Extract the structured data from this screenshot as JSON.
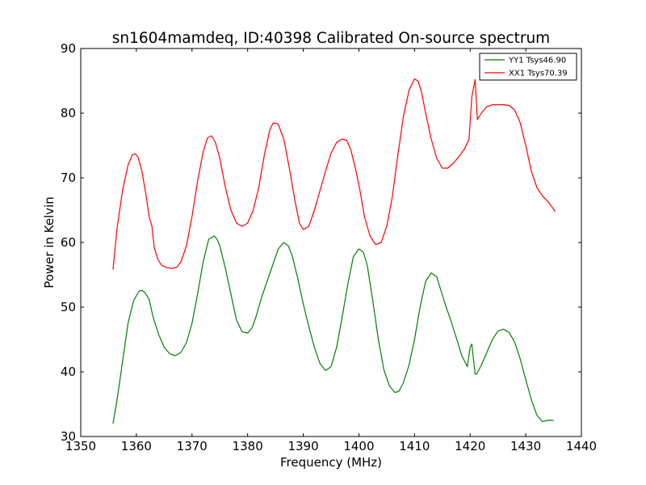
{
  "chart_data": {
    "type": "line",
    "title": "sn1604mamdeq, ID:40398 Calibrated On-source spectrum",
    "xlabel": "Frequency (MHz)",
    "ylabel": "Power in Kelvin",
    "xlim": [
      1350,
      1440
    ],
    "ylim": [
      30,
      90
    ],
    "xticks": [
      1350,
      1360,
      1370,
      1380,
      1390,
      1400,
      1410,
      1420,
      1430,
      1440
    ],
    "yticks": [
      30,
      40,
      50,
      60,
      70,
      80,
      90
    ],
    "grid": false,
    "legend_position": "top-right",
    "series": [
      {
        "name": "YY1 Tsys46.90",
        "color": "#008000",
        "x": [
          1355.8,
          1356.5,
          1357.5,
          1358.5,
          1359.5,
          1360.5,
          1361.0,
          1361.5,
          1362.3,
          1363.0,
          1364.0,
          1365.0,
          1366.0,
          1367.0,
          1368.0,
          1369.0,
          1370.0,
          1371.0,
          1372.0,
          1373.0,
          1374.0,
          1374.5,
          1375.0,
          1376.0,
          1377.0,
          1378.0,
          1379.0,
          1380.0,
          1380.8,
          1381.5,
          1382.5,
          1383.5,
          1384.5,
          1385.5,
          1386.5,
          1387.3,
          1388.0,
          1389.0,
          1390.0,
          1391.0,
          1392.0,
          1393.0,
          1394.0,
          1395.0,
          1396.0,
          1397.0,
          1398.0,
          1399.0,
          1400.0,
          1400.8,
          1401.5,
          1402.5,
          1403.5,
          1404.5,
          1405.5,
          1406.5,
          1407.2,
          1408.0,
          1409.0,
          1410.0,
          1411.0,
          1412.0,
          1413.0,
          1414.0,
          1414.6,
          1415.5,
          1416.5,
          1417.5,
          1418.5,
          1419.5,
          1420.0,
          1420.3,
          1420.9,
          1421.2,
          1422.0,
          1423.0,
          1424.0,
          1425.0,
          1426.0,
          1427.0,
          1428.0,
          1429.0,
          1430.0,
          1431.0,
          1432.0,
          1433.0,
          1434.0,
          1435.0
        ],
        "values": [
          32.0,
          35.5,
          41.5,
          47.5,
          51.0,
          52.5,
          52.6,
          52.3,
          51.2,
          48.5,
          45.8,
          43.8,
          42.8,
          42.5,
          43.0,
          44.5,
          47.5,
          52.0,
          57.0,
          60.5,
          61.0,
          60.5,
          59.5,
          56.0,
          52.0,
          48.0,
          46.2,
          46.0,
          46.8,
          48.5,
          51.5,
          54.0,
          56.5,
          59.0,
          60.0,
          59.5,
          58.0,
          54.5,
          50.5,
          47.0,
          43.8,
          41.3,
          40.2,
          40.8,
          43.8,
          48.5,
          53.5,
          57.8,
          59.0,
          58.5,
          56.5,
          51.0,
          45.0,
          40.3,
          37.8,
          36.8,
          37.0,
          38.3,
          41.0,
          45.0,
          50.0,
          54.0,
          55.3,
          54.7,
          53.0,
          50.5,
          48.0,
          45.3,
          42.5,
          40.8,
          43.8,
          44.3,
          39.6,
          39.7,
          41.0,
          43.0,
          45.0,
          46.3,
          46.6,
          46.1,
          44.6,
          42.0,
          38.8,
          35.7,
          33.3,
          32.3,
          32.5,
          32.5
        ]
      },
      {
        "name": "XX1 Tsys70.39",
        "color": "#ff0000",
        "x": [
          1355.8,
          1356.5,
          1357.5,
          1358.5,
          1359.3,
          1359.8,
          1360.3,
          1361.0,
          1361.7,
          1362.3,
          1362.8,
          1363.2,
          1363.8,
          1364.5,
          1365.5,
          1366.5,
          1367.3,
          1368.0,
          1369.0,
          1370.0,
          1371.0,
          1372.0,
          1372.8,
          1373.5,
          1374.2,
          1375.0,
          1376.0,
          1377.0,
          1378.0,
          1379.0,
          1380.0,
          1381.0,
          1382.0,
          1383.0,
          1384.0,
          1384.6,
          1385.5,
          1386.5,
          1387.5,
          1388.5,
          1389.3,
          1390.0,
          1391.0,
          1392.0,
          1393.0,
          1394.0,
          1395.0,
          1396.0,
          1397.0,
          1397.8,
          1398.5,
          1399.5,
          1400.2,
          1401.0,
          1402.0,
          1403.0,
          1404.0,
          1405.0,
          1406.0,
          1407.0,
          1408.0,
          1409.0,
          1410.0,
          1410.6,
          1411.2,
          1412.0,
          1413.0,
          1414.0,
          1415.0,
          1416.0,
          1417.0,
          1418.0,
          1419.0,
          1419.8,
          1420.3,
          1420.9,
          1421.3,
          1422.0,
          1423.0,
          1424.0,
          1425.0,
          1426.0,
          1427.0,
          1428.0,
          1429.0,
          1430.0,
          1431.0,
          1432.0,
          1433.0,
          1434.0,
          1435.3
        ],
        "values": [
          55.8,
          62.0,
          68.0,
          72.0,
          73.6,
          73.7,
          73.2,
          71.0,
          67.5,
          64.0,
          62.5,
          59.3,
          57.5,
          56.5,
          56.1,
          56.0,
          56.2,
          57.0,
          59.5,
          64.0,
          69.5,
          74.0,
          76.2,
          76.5,
          75.5,
          73.0,
          68.5,
          65.0,
          63.0,
          62.5,
          63.0,
          65.0,
          68.5,
          73.5,
          77.5,
          78.5,
          78.3,
          76.0,
          71.5,
          66.5,
          63.0,
          62.0,
          62.5,
          65.0,
          68.0,
          71.0,
          73.8,
          75.5,
          76.0,
          75.8,
          74.5,
          71.0,
          68.0,
          64.0,
          61.0,
          59.7,
          60.0,
          62.5,
          67.0,
          73.5,
          79.5,
          83.5,
          85.3,
          85.0,
          83.5,
          80.0,
          76.0,
          73.0,
          71.5,
          71.5,
          72.3,
          73.3,
          74.5,
          76.0,
          82.5,
          85.2,
          79.0,
          80.0,
          81.0,
          81.3,
          81.3,
          81.3,
          81.2,
          80.5,
          78.5,
          75.0,
          71.0,
          68.5,
          67.2,
          66.3,
          64.8
        ]
      }
    ]
  }
}
